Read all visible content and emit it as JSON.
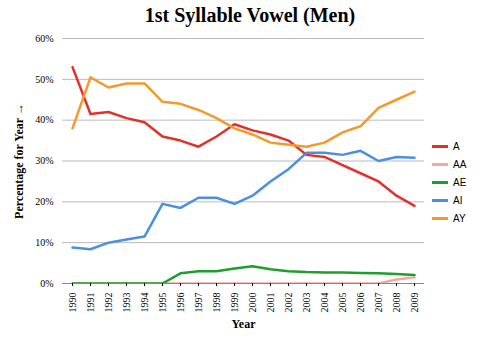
{
  "chart_data": {
    "type": "line",
    "title": "1st Syllable Vowel (Men)",
    "x_label": "Year",
    "y_label": "Percentage for Year",
    "categories": [
      "1990",
      "1991",
      "1992",
      "1993",
      "1994",
      "1995",
      "1996",
      "1997",
      "1998",
      "1999",
      "2000",
      "2001",
      "2002",
      "2003",
      "2004",
      "2005",
      "2006",
      "2007",
      "2008",
      "2009"
    ],
    "series": [
      {
        "name": "A",
        "color": "#e3302b",
        "values": [
          53,
          41.5,
          42,
          40.5,
          39.5,
          36,
          35,
          33.5,
          36,
          39,
          37.5,
          36.5,
          35,
          31.5,
          31,
          29,
          27,
          25,
          21.5,
          19
        ]
      },
      {
        "name": "AA",
        "color": "#f2a7a3",
        "values": [
          0,
          0,
          0,
          0,
          0,
          0,
          0,
          0,
          0,
          0,
          0,
          0,
          0,
          0,
          0,
          0,
          0,
          0,
          1,
          1.5
        ]
      },
      {
        "name": "AE",
        "color": "#1e9e2e",
        "values": [
          0,
          0,
          0,
          0,
          0,
          0,
          2.5,
          3,
          3,
          3.7,
          4.2,
          3.5,
          3,
          2.8,
          2.7,
          2.7,
          2.6,
          2.5,
          2.3,
          2.1
        ]
      },
      {
        "name": "AI",
        "color": "#4a8fe0",
        "values": [
          8.8,
          8.4,
          10,
          10.8,
          11.5,
          19.5,
          18.5,
          21,
          21,
          19.5,
          21.5,
          25,
          28,
          32,
          32,
          31.5,
          32.5,
          30,
          31,
          30.8
        ]
      },
      {
        "name": "AY",
        "color": "#f39a2b",
        "values": [
          38,
          50.5,
          48,
          49,
          49,
          44.5,
          44,
          42.5,
          40.5,
          38,
          36.5,
          34.5,
          34,
          33.5,
          34.5,
          37,
          38.5,
          43,
          45,
          47
        ]
      }
    ],
    "ylim": [
      0,
      60
    ],
    "yticks": [
      {
        "value": 0,
        "label": "0%"
      },
      {
        "value": 10,
        "label": "10%"
      },
      {
        "value": 20,
        "label": "20%"
      },
      {
        "value": 30,
        "label": "30%"
      },
      {
        "value": 40,
        "label": "40%"
      },
      {
        "value": 50,
        "label": "50%"
      },
      {
        "value": 60,
        "label": "60%"
      }
    ],
    "grid": true,
    "legend": "right"
  }
}
